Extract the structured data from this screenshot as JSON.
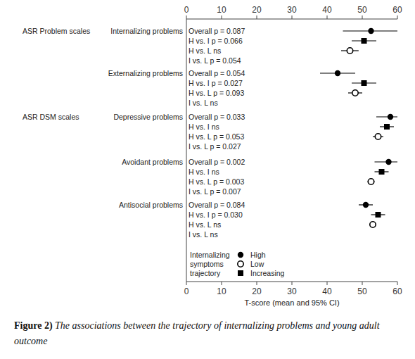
{
  "chart_data": {
    "type": "forest",
    "figure_label": "Figure 2)",
    "title": "The associations between the trajectory of internalizing problems and young adult outcome",
    "x_label": "T-score (mean and 95% CI)",
    "orientation": "horizontal",
    "grid": false,
    "legend": "lower left",
    "legend_title": [
      "Internalizing",
      "symptoms",
      "trajectory"
    ],
    "xlim": [
      0,
      60
    ],
    "xticks": [
      0,
      10,
      20,
      30,
      40,
      50,
      60
    ],
    "categories": [
      "Internalizing problems",
      "Externalizing problems",
      "Depressive problems",
      "Avoidant problems",
      "Antisocial problems"
    ],
    "groups": [
      "ASR Problem scales",
      null,
      "ASR DSM scales",
      null,
      null
    ],
    "annotations": [
      [
        "Overall p = 0.087",
        "H vs. I  p = 0.066",
        "H vs. L ns",
        "I  vs. L p = 0.054"
      ],
      [
        "Overall p = 0.054",
        "H vs. I  p = 0.027",
        "H vs. L p = 0.093",
        "I  vs. L ns"
      ],
      [
        "Overall p = 0.033",
        "H vs. I  ns",
        "H vs. L p = 0.053",
        "I  vs. L p = 0.027"
      ],
      [
        "Overall p = 0.002",
        "H vs. I  ns",
        "H vs. L p = 0.003",
        "I  vs. L p = 0.007"
      ],
      [
        "Overall p = 0.084",
        "H vs. I  p = 0.030",
        "H vs. L ns",
        "I  vs. L ns"
      ]
    ],
    "series": [
      {
        "name": "High",
        "marker": "filled-circle",
        "color": "#000000",
        "values": [
          52.5,
          43,
          58,
          57.5,
          51
        ],
        "ci_low": [
          44.5,
          38,
          54,
          53.5,
          49
        ],
        "ci_high": [
          60.5,
          48,
          62,
          61.5,
          53
        ]
      },
      {
        "name": "Low",
        "marker": "open-circle",
        "color": "#000000",
        "values": [
          46.5,
          48,
          54.5,
          52.5,
          53
        ],
        "ci_low": [
          44,
          46,
          53,
          51.5,
          52
        ],
        "ci_high": [
          49,
          50,
          56,
          53.5,
          54
        ]
      },
      {
        "name": "Increasing",
        "marker": "square",
        "color": "#000000",
        "values": [
          50.5,
          50.5,
          57,
          55.5,
          54.5
        ],
        "ci_low": [
          47,
          47,
          55,
          53.5,
          52.5
        ],
        "ci_high": [
          54,
          54,
          59,
          57.5,
          56.5
        ]
      }
    ]
  }
}
